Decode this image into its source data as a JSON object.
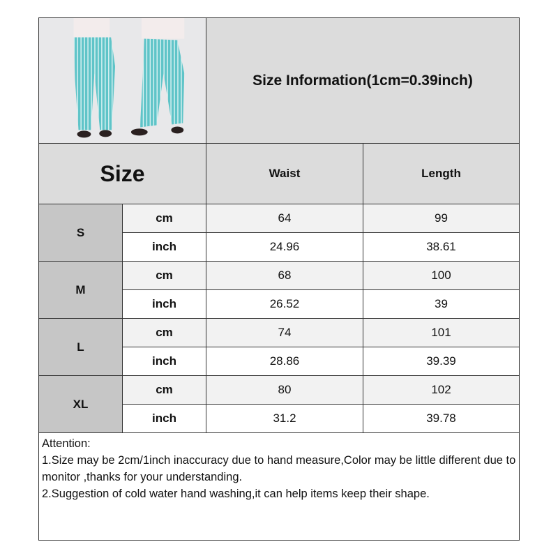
{
  "title": "Size Information(1cm=0.39inch)",
  "size_header": "Size",
  "columns": [
    "Waist",
    "Length"
  ],
  "rows": [
    {
      "size": "S",
      "cm": [
        "64",
        "99"
      ],
      "inch": [
        "24.96",
        "38.61"
      ]
    },
    {
      "size": "M",
      "cm": [
        "68",
        "100"
      ],
      "inch": [
        "26.52",
        "39"
      ]
    },
    {
      "size": "L",
      "cm": [
        "74",
        "101"
      ],
      "inch": [
        "28.86",
        "39.39"
      ]
    },
    {
      "size": "XL",
      "cm": [
        "80",
        "102"
      ],
      "inch": [
        "31.2",
        "39.78"
      ]
    }
  ],
  "units": {
    "cm": "cm",
    "inch": "inch"
  },
  "attention": {
    "heading": "Attention:",
    "lines": [
      "1.Size may be 2cm/1inch inaccuracy due to hand measure,Color may be little different due to monitor ,thanks for your understanding.",
      "2.Suggestion of cold water hand washing,it can help items keep their shape."
    ]
  },
  "colors": {
    "pants": "#5fc4c8",
    "header_bg": "#dcdcdc",
    "size_bg": "#c6c6c6"
  }
}
